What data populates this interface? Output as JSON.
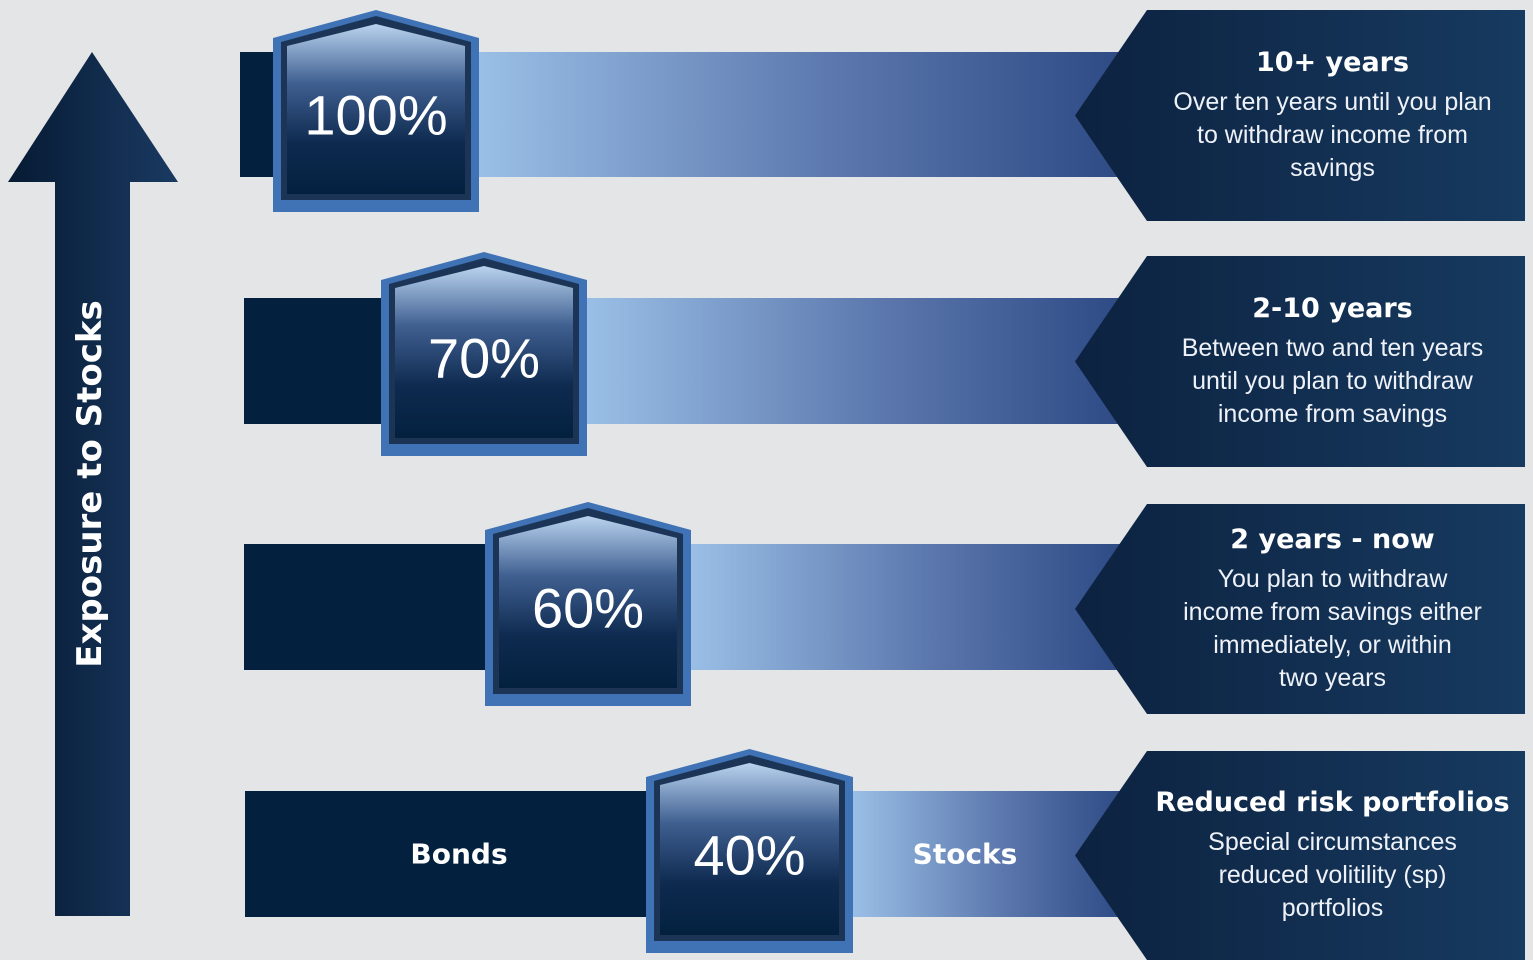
{
  "axis": {
    "label": "Exposure to Stocks"
  },
  "colors": {
    "navy_dark": "#03213f",
    "navy_panel": "#143456",
    "border_blue": "#3f73b5",
    "gradient_light": "#9abfe6",
    "gradient_dark": "#2e4a85",
    "background": "#e4e5e7"
  },
  "tiers": [
    {
      "percent": "100%",
      "stock_exposure": 100,
      "title": "10+ years",
      "description": [
        "Over ten years until you plan",
        "to withdraw income from",
        "savings"
      ]
    },
    {
      "percent": "70%",
      "stock_exposure": 70,
      "title": "2-10 years",
      "description": [
        "Between two and ten years",
        "until you plan to withdraw",
        "income from savings"
      ]
    },
    {
      "percent": "60%",
      "stock_exposure": 60,
      "title": "2 years - now",
      "description": [
        "You plan to withdraw",
        "income from savings either",
        "immediately, or within",
        "two years"
      ]
    },
    {
      "percent": "40%",
      "stock_exposure": 40,
      "title": "Reduced risk portfolios",
      "description": [
        "Special circumstances",
        "reduced volitility (sp)",
        "portfolios"
      ],
      "bonds_label": "Bonds",
      "stocks_label": "Stocks"
    }
  ]
}
